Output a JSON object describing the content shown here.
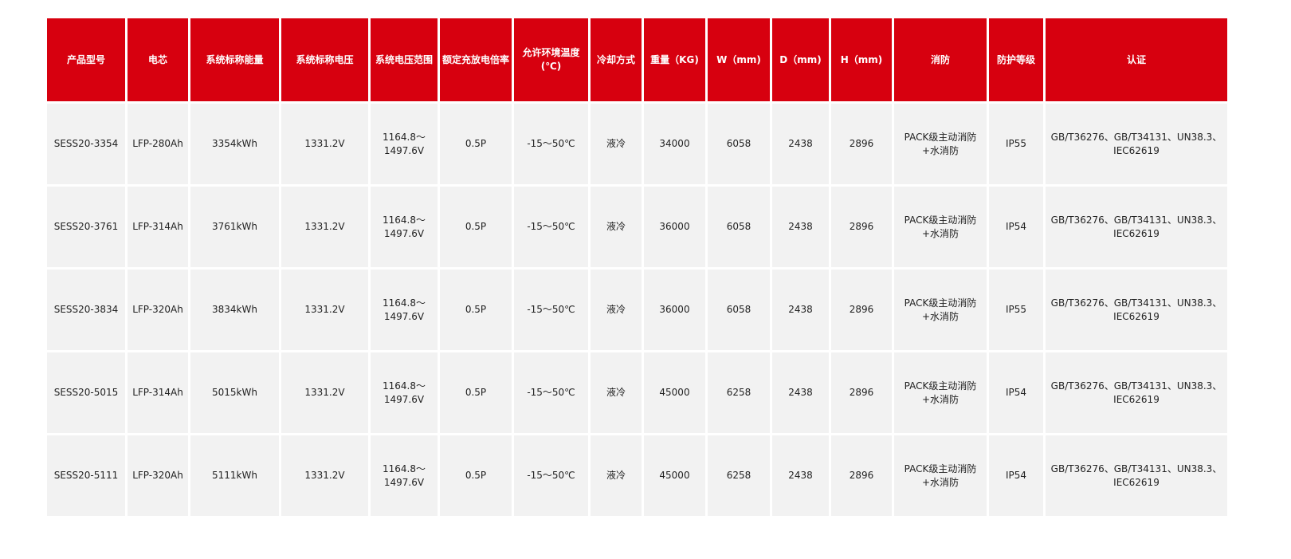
{
  "colors": {
    "header_bg": "#d7000f",
    "cell_bg": "#f2f2f2"
  },
  "table": {
    "headers": [
      "产品型号",
      "电芯",
      "系统标称能量",
      "系统标称电压",
      "系统电压范围",
      "额定充放电倍率",
      "允许环境温度(℃)",
      "冷却方式",
      "重量（KG)",
      "W（mm)",
      "D（mm)",
      "H（mm)",
      "消防",
      "防护等级",
      "认证"
    ],
    "rows": [
      [
        "SESS20-3354",
        "LFP-280Ah",
        "3354kWh",
        "1331.2V",
        "1164.8～1497.6V",
        "0.5P",
        "-15～50℃",
        "液冷",
        "34000",
        "6058",
        "2438",
        "2896",
        "PACK级主动消防+水消防",
        "IP55",
        "GB/T36276、GB/T34131、UN38.3、IEC62619"
      ],
      [
        "SESS20-3761",
        "LFP-314Ah",
        "3761kWh",
        "1331.2V",
        "1164.8～1497.6V",
        "0.5P",
        "-15～50℃",
        "液冷",
        "36000",
        "6058",
        "2438",
        "2896",
        "PACK级主动消防+水消防",
        "IP54",
        "GB/T36276、GB/T34131、UN38.3、IEC62619"
      ],
      [
        "SESS20-3834",
        "LFP-320Ah",
        "3834kWh",
        "1331.2V",
        "1164.8～1497.6V",
        "0.5P",
        "-15～50℃",
        "液冷",
        "36000",
        "6058",
        "2438",
        "2896",
        "PACK级主动消防+水消防",
        "IP55",
        "GB/T36276、GB/T34131、UN38.3、IEC62619"
      ],
      [
        "SESS20-5015",
        "LFP-314Ah",
        "5015kWh",
        "1331.2V",
        "1164.8～1497.6V",
        "0.5P",
        "-15～50℃",
        "液冷",
        "45000",
        "6258",
        "2438",
        "2896",
        "PACK级主动消防+水消防",
        "IP54",
        "GB/T36276、GB/T34131、UN38.3、IEC62619"
      ],
      [
        "SESS20-5111",
        "LFP-320Ah",
        "5111kWh",
        "1331.2V",
        "1164.8～1497.6V",
        "0.5P",
        "-15～50℃",
        "液冷",
        "45000",
        "6258",
        "2438",
        "2896",
        "PACK级主动消防+水消防",
        "IP54",
        "GB/T36276、GB/T34131、UN38.3、IEC62619"
      ]
    ]
  }
}
